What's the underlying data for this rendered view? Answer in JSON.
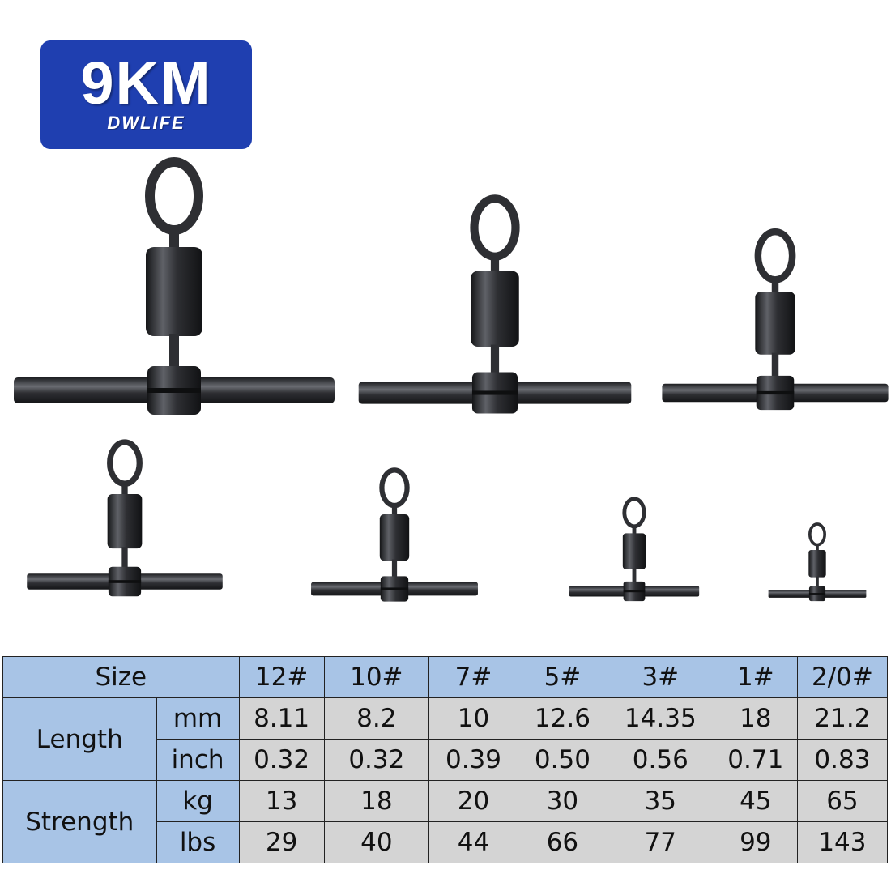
{
  "logo": {
    "brand": "9KM",
    "tagline": "DWLIFE",
    "color": "#1f3fb0"
  },
  "product": {
    "items": 7,
    "metal_color": "#2e2f33"
  },
  "table": {
    "header_label": "Size",
    "sizes": [
      "12#",
      "10#",
      "7#",
      "5#",
      "3#",
      "1#",
      "2/0#"
    ],
    "groups": [
      {
        "label": "Length",
        "rows": [
          {
            "unit": "mm",
            "values": [
              "8.11",
              "8.2",
              "10",
              "12.6",
              "14.35",
              "18",
              "21.2"
            ]
          },
          {
            "unit": "inch",
            "values": [
              "0.32",
              "0.32",
              "0.39",
              "0.50",
              "0.56",
              "0.71",
              "0.83"
            ]
          }
        ]
      },
      {
        "label": "Strength",
        "rows": [
          {
            "unit": "kg",
            "values": [
              "13",
              "18",
              "20",
              "30",
              "35",
              "45",
              "65"
            ]
          },
          {
            "unit": "lbs",
            "values": [
              "29",
              "40",
              "44",
              "66",
              "77",
              "99",
              "143"
            ]
          }
        ]
      }
    ],
    "header_color": "#a8c4e6",
    "cell_color": "#d4d4d4"
  }
}
